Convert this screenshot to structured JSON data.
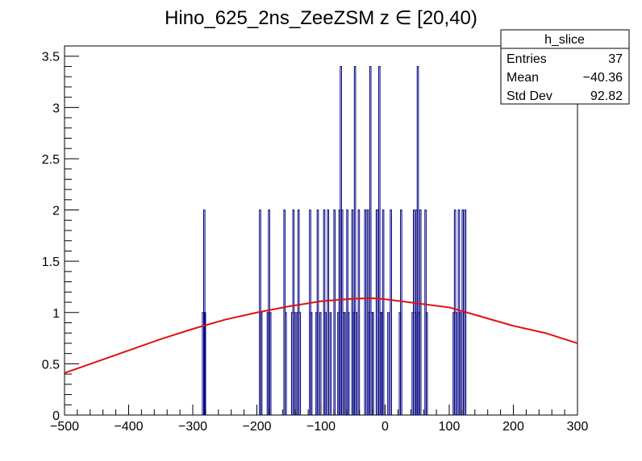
{
  "chart_data": {
    "type": "bar",
    "title": "Hino_625_2ns_ZeeZSM z  ∈ [20,40)",
    "xlabel": "",
    "ylabel": "",
    "xlim": [
      -500,
      300
    ],
    "ylim": [
      0,
      3.6
    ],
    "x_ticks": [
      -500,
      -400,
      -300,
      -200,
      -100,
      0,
      100,
      200,
      300
    ],
    "x_tick_labels": [
      "−500",
      "−400",
      "−300",
      "−200",
      "−100",
      "0",
      "100",
      "200",
      "300"
    ],
    "y_ticks": [
      0,
      0.5,
      1,
      1.5,
      2,
      2.5,
      3,
      3.5
    ],
    "y_tick_labels": [
      "0",
      "0.5",
      "1",
      "1.5",
      "2",
      "2.5",
      "3",
      "3.5"
    ],
    "grid": false,
    "series": [
      {
        "style": "histogram",
        "color": "#000080",
        "bins": [
          [
            -284,
            1
          ],
          [
            -282,
            2
          ],
          [
            -281,
            1
          ],
          [
            -195,
            2
          ],
          [
            -193,
            1
          ],
          [
            -183,
            1
          ],
          [
            -181,
            2
          ],
          [
            -179,
            1
          ],
          [
            -157,
            2
          ],
          [
            -155,
            1
          ],
          [
            -145,
            1
          ],
          [
            -143,
            2
          ],
          [
            -141,
            1
          ],
          [
            -137,
            1
          ],
          [
            -135,
            2
          ],
          [
            -133,
            1
          ],
          [
            -117,
            2
          ],
          [
            -115,
            1
          ],
          [
            -107,
            1
          ],
          [
            -105,
            2
          ],
          [
            -101,
            1
          ],
          [
            -95,
            2
          ],
          [
            -93,
            1
          ],
          [
            -89,
            2
          ],
          [
            -85,
            1
          ],
          [
            -79,
            2
          ],
          [
            -73,
            1
          ],
          [
            -71,
            2
          ],
          [
            -69,
            3.4
          ],
          [
            -67,
            2
          ],
          [
            -65,
            1
          ],
          [
            -63,
            1
          ],
          [
            -59,
            2
          ],
          [
            -57,
            1
          ],
          [
            -51,
            2
          ],
          [
            -49,
            1
          ],
          [
            -47,
            3.4
          ],
          [
            -45,
            1
          ],
          [
            -41,
            2
          ],
          [
            -31,
            2
          ],
          [
            -27,
            2
          ],
          [
            -25,
            1
          ],
          [
            -23,
            3.4
          ],
          [
            -21,
            1
          ],
          [
            -19,
            1
          ],
          [
            -13,
            2
          ],
          [
            -11,
            2
          ],
          [
            -9,
            3.4
          ],
          [
            -7,
            1
          ],
          [
            -5,
            1
          ],
          [
            -3,
            2
          ],
          [
            5,
            1
          ],
          [
            9,
            2
          ],
          [
            23,
            1
          ],
          [
            25,
            2
          ],
          [
            43,
            1
          ],
          [
            45,
            2
          ],
          [
            47,
            1
          ],
          [
            49,
            2
          ],
          [
            51,
            3.4
          ],
          [
            53,
            1
          ],
          [
            55,
            2
          ],
          [
            63,
            2
          ],
          [
            65,
            1
          ],
          [
            107,
            1
          ],
          [
            109,
            2
          ],
          [
            111,
            1
          ],
          [
            115,
            2
          ],
          [
            117,
            1
          ],
          [
            121,
            2
          ],
          [
            123,
            1
          ],
          [
            125,
            2
          ]
        ]
      },
      {
        "style": "line",
        "color": "#e01010",
        "x": [
          -500,
          -450,
          -400,
          -350,
          -300,
          -250,
          -200,
          -150,
          -100,
          -50,
          -20,
          0,
          50,
          100,
          150,
          200,
          250,
          300
        ],
        "y": [
          0.41,
          0.52,
          0.63,
          0.74,
          0.84,
          0.93,
          1.0,
          1.06,
          1.11,
          1.135,
          1.14,
          1.13,
          1.09,
          1.05,
          0.96,
          0.87,
          0.8,
          0.7
        ]
      }
    ],
    "stats_box": {
      "title": "h_slice",
      "rows": [
        {
          "label": "Entries",
          "value": "37"
        },
        {
          "label": "Mean",
          "value": "−40.36"
        },
        {
          "label": "Std Dev",
          "value": "92.82"
        }
      ],
      "placement": "top-right"
    }
  }
}
